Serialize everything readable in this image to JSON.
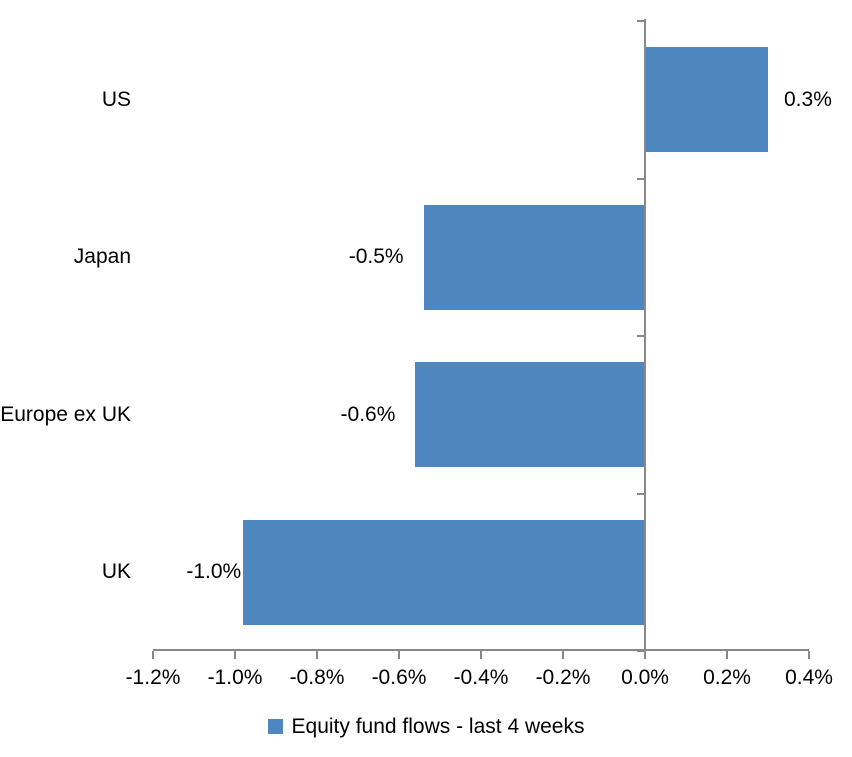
{
  "chart_data": {
    "type": "bar",
    "orientation": "horizontal",
    "title": "",
    "categories": [
      "US",
      "Japan",
      "Europe ex UK",
      "UK"
    ],
    "series": [
      {
        "name": "Equity fund flows - last 4 weeks",
        "values": [
          0.3,
          -0.54,
          -0.56,
          -0.98
        ],
        "data_labels": [
          "0.3%",
          "-0.5%",
          "-0.6%",
          "-1.0%"
        ]
      }
    ],
    "xlim": [
      -1.2,
      0.4
    ],
    "x_ticks": [
      {
        "value": -1.2,
        "label": "-1.2%"
      },
      {
        "value": -1.0,
        "label": "-1.0%"
      },
      {
        "value": -0.8,
        "label": "-0.8%"
      },
      {
        "value": -0.6,
        "label": "-0.6%"
      },
      {
        "value": -0.4,
        "label": "-0.4%"
      },
      {
        "value": -0.2,
        "label": "-0.2%"
      },
      {
        "value": 0.0,
        "label": "0.0%"
      },
      {
        "value": 0.2,
        "label": "0.2%"
      },
      {
        "value": 0.4,
        "label": "0.4%"
      }
    ],
    "grid": false,
    "legend_position": "bottom",
    "colors": {
      "bar": "#4E86BF",
      "axis": "#898989",
      "text": "#000000",
      "background": "#FFFFFF"
    }
  },
  "legend": {
    "label": "Equity fund flows - last 4 weeks"
  }
}
